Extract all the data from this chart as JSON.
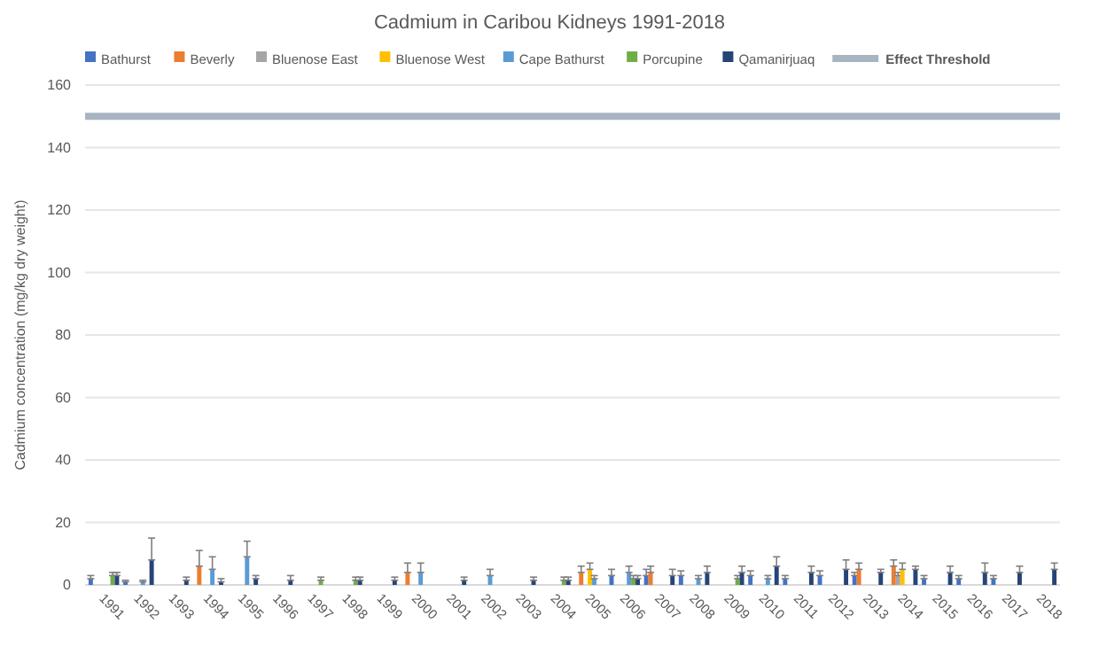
{
  "chart_data": {
    "type": "bar",
    "title": "Cadmium in Caribou Kidneys 1991-2018",
    "ylabel": "Cadmium concentration (mg/kg dry weight)",
    "categories": [
      "1991",
      "1992",
      "1993",
      "1994",
      "1995",
      "1996",
      "1997",
      "1998",
      "1999",
      "2000",
      "2001",
      "2002",
      "2003",
      "2004",
      "2005",
      "2006",
      "2007",
      "2008",
      "2009",
      "2010",
      "2011",
      "2012",
      "2013",
      "2014",
      "2015",
      "2016",
      "2017",
      "2018"
    ],
    "series": [
      {
        "name": "Bathurst",
        "color": "#4472c4",
        "values": [
          2,
          1,
          null,
          null,
          null,
          null,
          null,
          null,
          null,
          null,
          null,
          null,
          null,
          null,
          null,
          3,
          3,
          3,
          null,
          3,
          2,
          3,
          3,
          null,
          2,
          2,
          2,
          null
        ],
        "errors": [
          [
            2,
            3
          ],
          [
            1,
            1.5
          ],
          null,
          null,
          null,
          null,
          null,
          null,
          null,
          null,
          null,
          null,
          null,
          null,
          null,
          [
            3,
            5
          ],
          [
            3,
            5
          ],
          [
            3,
            4.5
          ],
          null,
          [
            3,
            4.5
          ],
          [
            2,
            3
          ],
          [
            3,
            4.5
          ],
          [
            3,
            4
          ],
          null,
          [
            2,
            3
          ],
          [
            2,
            3
          ],
          [
            2,
            3
          ],
          null
        ]
      },
      {
        "name": "Beverly",
        "color": "#ed7d31",
        "values": [
          null,
          null,
          null,
          6,
          null,
          null,
          null,
          null,
          null,
          4,
          null,
          null,
          null,
          null,
          4,
          null,
          4,
          null,
          null,
          null,
          null,
          null,
          5,
          6,
          null,
          null,
          null,
          null
        ],
        "errors": [
          null,
          null,
          null,
          [
            6,
            11
          ],
          null,
          null,
          null,
          null,
          null,
          [
            4,
            7
          ],
          null,
          null,
          null,
          null,
          [
            4,
            6
          ],
          null,
          [
            4,
            6
          ],
          null,
          null,
          null,
          null,
          null,
          [
            5,
            7
          ],
          [
            6,
            8
          ],
          null,
          null,
          null,
          null
        ]
      },
      {
        "name": "Bluenose East",
        "color": "#a5a5a5",
        "values": [
          null,
          null,
          null,
          null,
          null,
          null,
          null,
          null,
          null,
          null,
          null,
          null,
          null,
          null,
          null,
          null,
          null,
          null,
          null,
          null,
          null,
          null,
          null,
          3,
          null,
          null,
          null,
          null
        ],
        "errors": [
          null,
          null,
          null,
          null,
          null,
          null,
          null,
          null,
          null,
          null,
          null,
          null,
          null,
          null,
          null,
          null,
          null,
          null,
          null,
          null,
          null,
          null,
          null,
          [
            3,
            4
          ],
          null,
          null,
          null,
          null
        ]
      },
      {
        "name": "Bluenose West",
        "color": "#ffc000",
        "values": [
          null,
          null,
          null,
          null,
          null,
          null,
          null,
          null,
          null,
          null,
          null,
          null,
          null,
          null,
          5,
          null,
          null,
          null,
          null,
          null,
          null,
          null,
          null,
          5,
          null,
          null,
          null,
          null
        ],
        "errors": [
          null,
          null,
          null,
          null,
          null,
          null,
          null,
          null,
          null,
          null,
          null,
          null,
          null,
          null,
          [
            5,
            7
          ],
          null,
          null,
          null,
          null,
          null,
          null,
          null,
          null,
          [
            5,
            7
          ],
          null,
          null,
          null,
          null
        ]
      },
      {
        "name": "Cape Bathurst",
        "color": "#5b9bd5",
        "values": [
          null,
          1,
          null,
          5,
          9,
          null,
          null,
          null,
          null,
          4,
          null,
          3,
          null,
          null,
          2,
          4,
          null,
          2,
          null,
          2,
          null,
          null,
          null,
          null,
          null,
          null,
          null,
          null
        ],
        "errors": [
          null,
          [
            1,
            1.5
          ],
          null,
          [
            5,
            9
          ],
          [
            9,
            14
          ],
          null,
          null,
          null,
          null,
          [
            4,
            7
          ],
          null,
          [
            3,
            5
          ],
          null,
          null,
          [
            2,
            3
          ],
          [
            4,
            6
          ],
          null,
          [
            2,
            3
          ],
          null,
          [
            2,
            3
          ],
          null,
          null,
          null,
          null,
          null,
          null,
          null,
          null
        ]
      },
      {
        "name": "Porcupine",
        "color": "#70ad47",
        "values": [
          3,
          null,
          null,
          null,
          null,
          null,
          1.5,
          1.5,
          null,
          null,
          null,
          null,
          null,
          1.5,
          null,
          2,
          null,
          null,
          2,
          null,
          null,
          null,
          null,
          null,
          null,
          null,
          null,
          null
        ],
        "errors": [
          [
            3,
            4
          ],
          null,
          null,
          null,
          null,
          null,
          [
            1.5,
            2.5
          ],
          [
            1.5,
            2.5
          ],
          null,
          null,
          null,
          null,
          null,
          [
            1.5,
            2.5
          ],
          null,
          [
            2,
            3
          ],
          null,
          null,
          [
            2,
            3
          ],
          null,
          null,
          null,
          null,
          null,
          null,
          null,
          null,
          null
        ]
      },
      {
        "name": "Qamanirjuaq",
        "color": "#264478",
        "values": [
          3,
          8,
          1.5,
          1,
          2,
          1.5,
          null,
          1.5,
          1.5,
          null,
          1.5,
          null,
          1.5,
          1.5,
          null,
          2,
          3,
          4,
          4,
          6,
          4,
          5,
          4,
          5,
          4,
          4,
          4,
          5
        ],
        "errors": [
          [
            3,
            4
          ],
          [
            8,
            15
          ],
          [
            1.5,
            2.5
          ],
          [
            1,
            2
          ],
          [
            2,
            3
          ],
          [
            1.5,
            3
          ],
          null,
          [
            1.5,
            2.5
          ],
          [
            1.5,
            2.5
          ],
          null,
          [
            1.5,
            2.5
          ],
          null,
          [
            1.5,
            2.5
          ],
          [
            1.5,
            2.5
          ],
          null,
          [
            2,
            3
          ],
          [
            3,
            5
          ],
          [
            4,
            6
          ],
          [
            4,
            6
          ],
          [
            6,
            9
          ],
          [
            4,
            6
          ],
          [
            5,
            8
          ],
          [
            4,
            5
          ],
          [
            5,
            6
          ],
          [
            4,
            6
          ],
          [
            4,
            7
          ],
          [
            4,
            6
          ],
          [
            5,
            7
          ]
        ]
      }
    ],
    "ref_lines": [
      {
        "axis": "y",
        "value": 150,
        "label": "Effect Threshold",
        "color": "#a9b4c2"
      }
    ],
    "ylim": [
      0,
      160
    ],
    "yticks": [
      0,
      20,
      40,
      60,
      80,
      100,
      120,
      140,
      160
    ],
    "grid": "y",
    "legend": "top"
  }
}
